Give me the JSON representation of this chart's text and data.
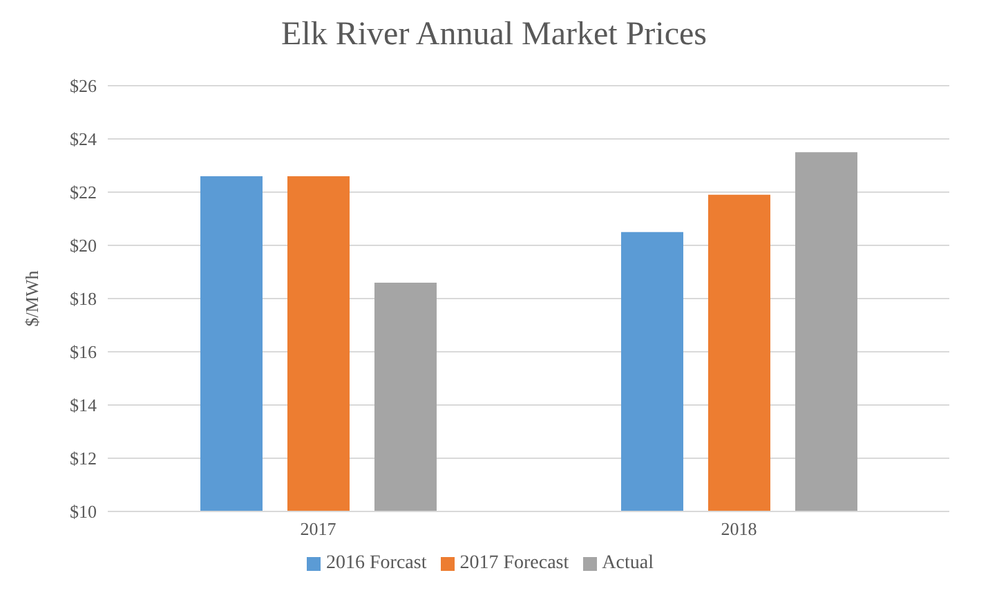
{
  "chart_data": {
    "type": "bar",
    "title": "Elk River Annual Market Prices",
    "ylabel": "$/MWh",
    "categories": [
      "2017",
      "2018"
    ],
    "series": [
      {
        "name": "2016 Forcast",
        "color": "#5b9bd5",
        "values": [
          22.6,
          20.5
        ]
      },
      {
        "name": "2017 Forecast",
        "color": "#ed7d31",
        "values": [
          22.6,
          21.9
        ]
      },
      {
        "name": "Actual",
        "color": "#a5a5a5",
        "values": [
          18.6,
          23.5
        ]
      }
    ],
    "ylim": [
      10,
      26
    ],
    "yticks": [
      {
        "value": 10,
        "label": "$10"
      },
      {
        "value": 12,
        "label": "$12"
      },
      {
        "value": 14,
        "label": "$14"
      },
      {
        "value": 16,
        "label": "$16"
      },
      {
        "value": 18,
        "label": "$18"
      },
      {
        "value": 20,
        "label": "$20"
      },
      {
        "value": 22,
        "label": "$22"
      },
      {
        "value": 24,
        "label": "$24"
      },
      {
        "value": 26,
        "label": "$26"
      }
    ],
    "grid": "y",
    "legend": "bottom"
  }
}
